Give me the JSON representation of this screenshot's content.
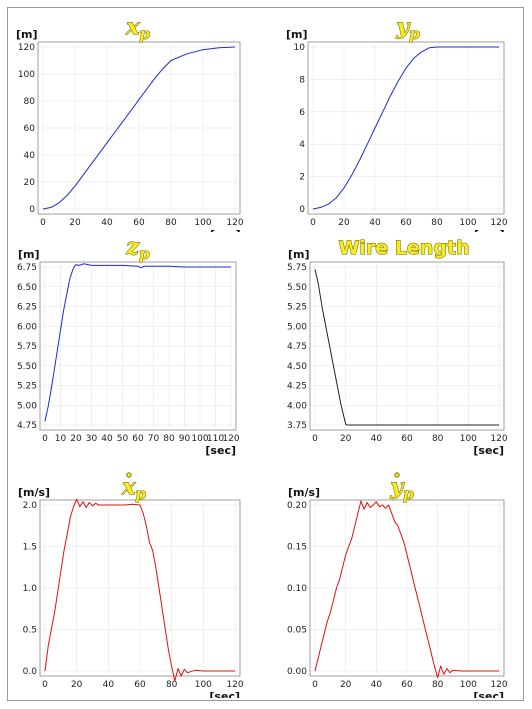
{
  "colors": {
    "blue": "#1c2bd0",
    "black": "#222222",
    "red": "#e01010",
    "grid": "#e6e6e6"
  },
  "chart_data": [
    {
      "type": "line",
      "title": "x",
      "title_sub": "p",
      "title_dot": false,
      "ylabel": "[m]",
      "xlabel": "[sec]",
      "xlim": [
        0,
        120
      ],
      "ylim": [
        0,
        120
      ],
      "xticks": [
        0,
        20,
        40,
        60,
        80,
        100,
        120
      ],
      "xtick_labels": [
        "0",
        "20",
        "40",
        "60",
        "80",
        "100",
        "120"
      ],
      "yticks": [
        0,
        20,
        40,
        60,
        80,
        100,
        120
      ],
      "ytick_labels": [
        "0",
        "20",
        "40",
        "60",
        "80",
        "100",
        "120"
      ],
      "grid": true,
      "color": "blue",
      "x": [
        0,
        5,
        10,
        15,
        20,
        25,
        30,
        35,
        40,
        45,
        50,
        55,
        60,
        65,
        70,
        75,
        80,
        90,
        100,
        110,
        120
      ],
      "y": [
        0,
        1.2,
        4.5,
        10,
        17,
        25,
        33,
        41,
        49,
        57,
        65,
        73,
        81,
        89,
        97,
        104,
        110,
        115,
        118,
        119.5,
        120
      ]
    },
    {
      "type": "line",
      "title": "y",
      "title_sub": "p",
      "title_dot": false,
      "ylabel": "[m]",
      "xlabel": "[sec]",
      "xlim": [
        0,
        120
      ],
      "ylim": [
        0,
        10
      ],
      "xticks": [
        0,
        20,
        40,
        60,
        80,
        100,
        120
      ],
      "xtick_labels": [
        "0",
        "20",
        "40",
        "60",
        "80",
        "100",
        "120"
      ],
      "yticks": [
        0,
        2,
        4,
        6,
        8,
        10
      ],
      "ytick_labels": [
        "0",
        "2",
        "4",
        "6",
        "8",
        "10"
      ],
      "grid": true,
      "color": "blue",
      "x": [
        0,
        5,
        10,
        15,
        20,
        25,
        30,
        35,
        40,
        45,
        50,
        55,
        60,
        65,
        70,
        75,
        80,
        90,
        100,
        110,
        120
      ],
      "y": [
        0,
        0.1,
        0.3,
        0.7,
        1.3,
        2.1,
        3.0,
        4.0,
        5.0,
        6.0,
        7.0,
        7.9,
        8.7,
        9.3,
        9.7,
        9.95,
        10,
        10,
        10,
        10,
        10
      ]
    },
    {
      "type": "line",
      "title": "z",
      "title_sub": "p",
      "title_dot": false,
      "ylabel": "[m]",
      "xlabel": "[sec]",
      "xlim": [
        0,
        120
      ],
      "ylim": [
        4.75,
        6.75
      ],
      "xticks": [
        0,
        10,
        20,
        30,
        40,
        50,
        60,
        70,
        80,
        90,
        100,
        110,
        120
      ],
      "xtick_labels": [
        "0",
        "10",
        "20",
        "30",
        "40",
        "50",
        "60",
        "70",
        "80",
        "90",
        "100",
        "110",
        "120"
      ],
      "yticks": [
        4.75,
        5.0,
        5.25,
        5.5,
        5.75,
        6.0,
        6.25,
        6.5,
        6.75
      ],
      "ytick_labels": [
        "4.75",
        "5.00",
        "5.25",
        "5.50",
        "5.75",
        "6.00",
        "6.25",
        "6.50",
        "6.75"
      ],
      "grid": true,
      "color": "blue",
      "x": [
        0,
        2,
        4,
        6,
        8,
        10,
        12,
        14,
        16,
        18,
        19,
        20,
        22,
        25,
        30,
        40,
        50,
        60,
        62,
        64,
        70,
        80,
        90,
        100,
        110,
        120
      ],
      "y": [
        4.8,
        4.98,
        5.2,
        5.45,
        5.7,
        5.95,
        6.2,
        6.4,
        6.6,
        6.72,
        6.76,
        6.78,
        6.77,
        6.79,
        6.77,
        6.77,
        6.77,
        6.76,
        6.74,
        6.76,
        6.76,
        6.76,
        6.75,
        6.75,
        6.75,
        6.75
      ]
    },
    {
      "type": "line",
      "title": "Wire Length",
      "title_sub": "",
      "title_dot": false,
      "ylabel": "[m]",
      "xlabel": "[sec]",
      "xlim": [
        0,
        120
      ],
      "ylim": [
        3.75,
        5.75
      ],
      "xticks": [
        0,
        20,
        40,
        60,
        80,
        100,
        120
      ],
      "xtick_labels": [
        "0",
        "20",
        "40",
        "60",
        "80",
        "100",
        "120"
      ],
      "yticks": [
        3.75,
        4.0,
        4.25,
        4.5,
        4.75,
        5.0,
        5.25,
        5.5,
        5.75
      ],
      "ytick_labels": [
        "3.75",
        "4.00",
        "4.25",
        "4.50",
        "4.75",
        "5.00",
        "5.25",
        "5.50",
        "5.75"
      ],
      "grid": true,
      "color": "black",
      "x": [
        0,
        2,
        5,
        8,
        11,
        14,
        17,
        20,
        21,
        40,
        60,
        80,
        100,
        120
      ],
      "y": [
        5.72,
        5.55,
        5.2,
        4.9,
        4.6,
        4.3,
        4.0,
        3.76,
        3.75,
        3.75,
        3.75,
        3.75,
        3.75,
        3.75
      ]
    },
    {
      "type": "line",
      "title": "x",
      "title_sub": "p",
      "title_dot": true,
      "ylabel": "[m/s]",
      "xlabel": "[sec]",
      "xlim": [
        0,
        120
      ],
      "ylim": [
        0,
        2.0
      ],
      "xticks": [
        0,
        20,
        40,
        60,
        80,
        100,
        120
      ],
      "xtick_labels": [
        "0",
        "20",
        "40",
        "60",
        "80",
        "100",
        "120"
      ],
      "yticks": [
        0,
        0.5,
        1.0,
        1.5,
        2.0
      ],
      "ytick_labels": [
        "0.0",
        "0.5",
        "1.0",
        "1.5",
        "2.0"
      ],
      "grid": true,
      "color": "red",
      "x": [
        0,
        2,
        4,
        6,
        8,
        10,
        12,
        14,
        16,
        18,
        20,
        22,
        24,
        26,
        28,
        30,
        32,
        34,
        40,
        50,
        55,
        60,
        62,
        64,
        66,
        68,
        70,
        72,
        74,
        76,
        78,
        80,
        82,
        84,
        86,
        88,
        90,
        95,
        100,
        110,
        120
      ],
      "y": [
        0,
        0.3,
        0.5,
        0.7,
        0.95,
        1.2,
        1.45,
        1.65,
        1.85,
        1.98,
        2.07,
        1.98,
        2.04,
        1.97,
        2.03,
        1.99,
        2.02,
        2.0,
        2.0,
        2.0,
        2.01,
        2.0,
        1.9,
        1.75,
        1.55,
        1.45,
        1.25,
        1.0,
        0.75,
        0.5,
        0.25,
        0.05,
        -0.12,
        0.03,
        -0.06,
        0.02,
        -0.02,
        0.01,
        0.0,
        0.0,
        0.0
      ]
    },
    {
      "type": "line",
      "title": "y",
      "title_sub": "p",
      "title_dot": true,
      "ylabel": "[m/s]",
      "xlabel": "[sec]",
      "xlim": [
        0,
        120
      ],
      "ylim": [
        0,
        0.2
      ],
      "xticks": [
        0,
        20,
        40,
        60,
        80,
        100,
        120
      ],
      "xtick_labels": [
        "0",
        "20",
        "40",
        "60",
        "80",
        "100",
        "120"
      ],
      "yticks": [
        0,
        0.05,
        0.1,
        0.15,
        0.2
      ],
      "ytick_labels": [
        "0.00",
        "0.05",
        "0.10",
        "0.15",
        "0.20"
      ],
      "grid": true,
      "color": "red",
      "x": [
        0,
        2,
        4,
        6,
        8,
        10,
        12,
        14,
        16,
        18,
        20,
        22,
        24,
        26,
        28,
        30,
        32,
        34,
        36,
        38,
        40,
        42,
        44,
        46,
        48,
        50,
        52,
        54,
        56,
        58,
        60,
        62,
        64,
        66,
        68,
        70,
        72,
        74,
        76,
        78,
        80,
        82,
        84,
        86,
        88,
        90,
        95,
        100,
        110,
        120
      ],
      "y": [
        0,
        0.015,
        0.03,
        0.045,
        0.06,
        0.07,
        0.085,
        0.1,
        0.11,
        0.125,
        0.14,
        0.15,
        0.16,
        0.175,
        0.19,
        0.205,
        0.195,
        0.203,
        0.197,
        0.2,
        0.204,
        0.198,
        0.2,
        0.196,
        0.2,
        0.19,
        0.18,
        0.175,
        0.165,
        0.155,
        0.14,
        0.125,
        0.11,
        0.095,
        0.08,
        0.065,
        0.05,
        0.035,
        0.02,
        0.005,
        -0.008,
        0.006,
        -0.004,
        0.003,
        -0.002,
        0.001,
        0.0,
        0.0,
        0.0,
        0.0
      ]
    }
  ]
}
